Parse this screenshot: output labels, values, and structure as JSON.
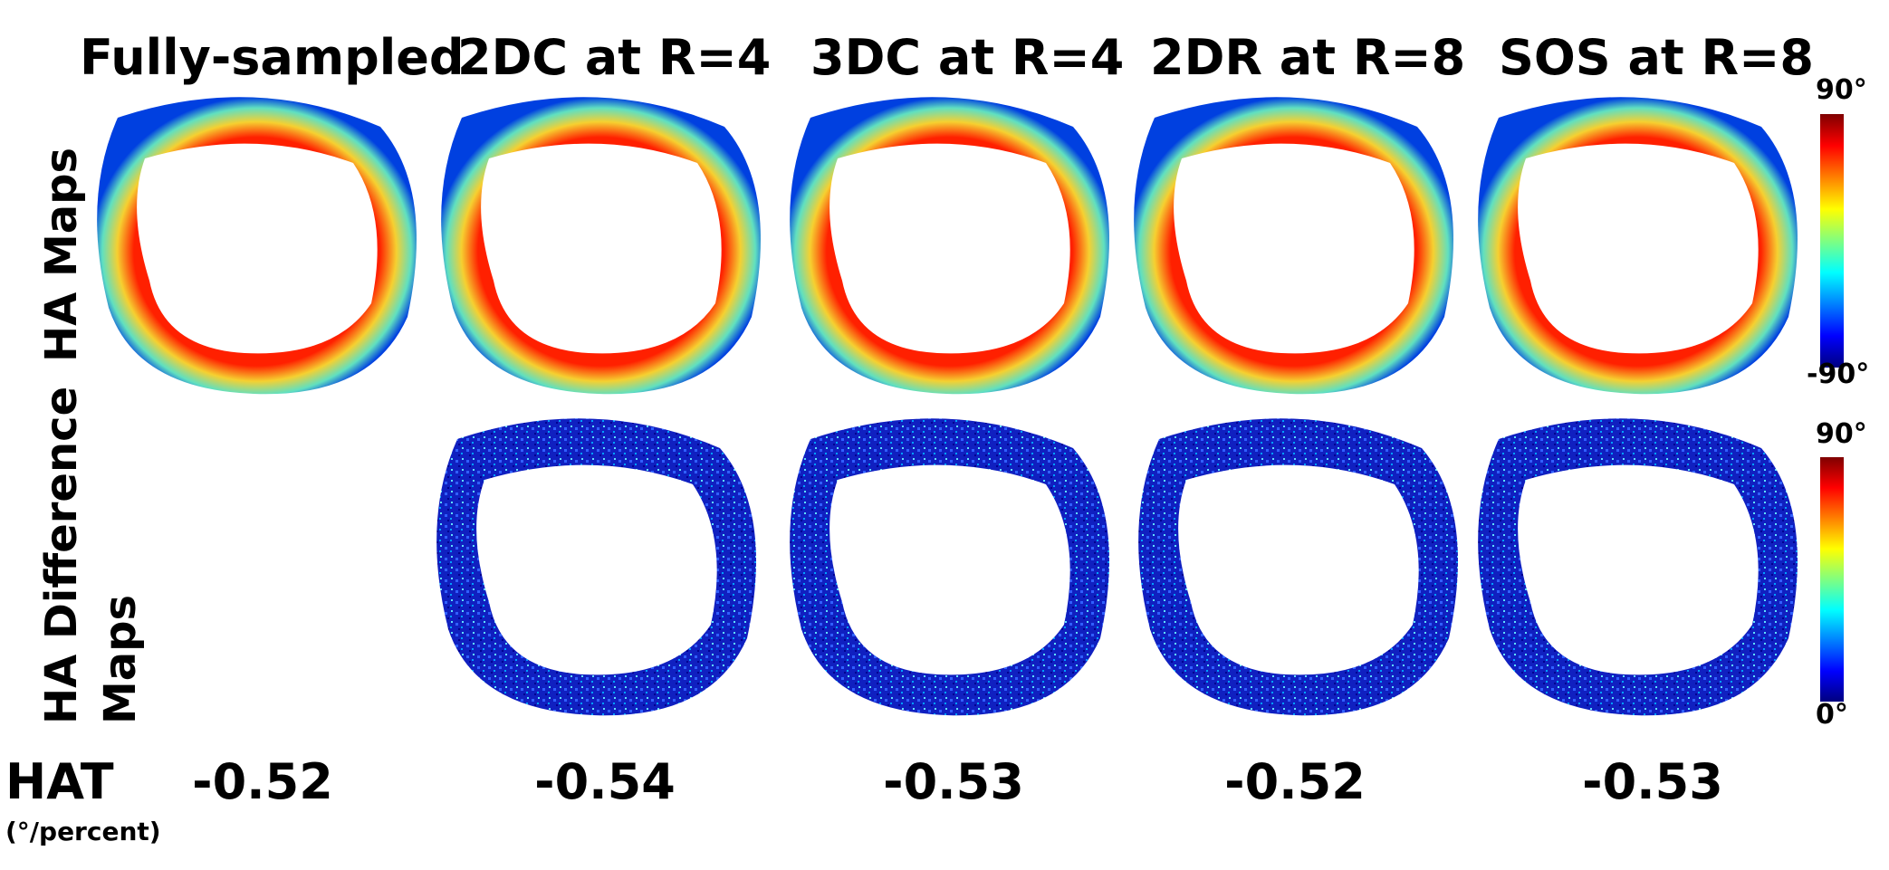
{
  "columns": [
    {
      "title": "Fully-sampled",
      "hat": "-0.52"
    },
    {
      "title": "2DC at R=4",
      "hat": "-0.54"
    },
    {
      "title": "3DC at R=4",
      "hat": "-0.53"
    },
    {
      "title": "2DR at R=8",
      "hat": "-0.52"
    },
    {
      "title": "SOS at R=8",
      "hat": "-0.53"
    }
  ],
  "rows": {
    "ha_maps": "HA Maps",
    "ha_diff_line1": "HA Difference",
    "ha_diff_line2": "Maps"
  },
  "hat": {
    "label": "HAT",
    "unit": "(°/percent)"
  },
  "colorbars": {
    "ha": {
      "max": "90°",
      "min": "-90°"
    },
    "diff": {
      "max": "90°",
      "min": "0°"
    }
  },
  "colors": {
    "ha_inner": "#e23a10",
    "ha_mid": "#f0e040",
    "ha_outer": "#30c0e8",
    "diff_base": "#1020c0"
  }
}
